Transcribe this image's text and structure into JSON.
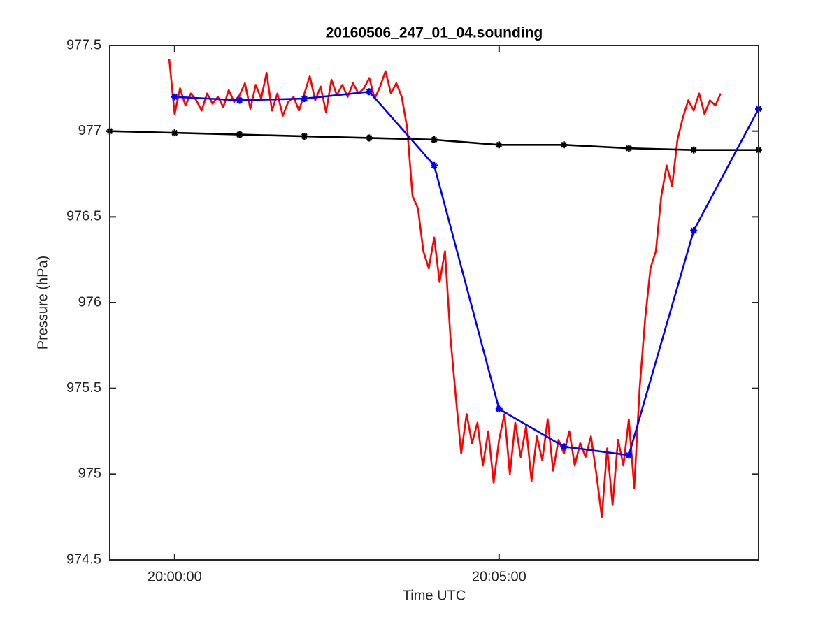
{
  "chart_data": {
    "type": "line",
    "title": "20160506_247_01_04.sounding",
    "x_label": "Time UTC",
    "y_label": "Pressure (hPa)",
    "xlim": [
      "19:59:00",
      "20:09:00"
    ],
    "xticks": [
      "20:00:00",
      "20:05:00"
    ],
    "ylim": [
      974.5,
      977.5
    ],
    "yticks": [
      974.5,
      975,
      975.5,
      976,
      976.5,
      977,
      977.5
    ],
    "series": [
      {
        "color": "#ff0000",
        "marker": "none",
        "x": [
          "19:59:55",
          "20:00:00",
          "20:00:05",
          "20:00:10",
          "20:00:15",
          "20:00:20",
          "20:00:25",
          "20:00:30",
          "20:00:35",
          "20:00:40",
          "20:00:45",
          "20:00:50",
          "20:00:55",
          "20:01:00",
          "20:01:05",
          "20:01:10",
          "20:01:15",
          "20:01:20",
          "20:01:25",
          "20:01:30",
          "20:01:35",
          "20:01:40",
          "20:01:45",
          "20:01:50",
          "20:01:55",
          "20:02:00",
          "20:02:05",
          "20:02:10",
          "20:02:15",
          "20:02:20",
          "20:02:25",
          "20:02:30",
          "20:02:35",
          "20:02:40",
          "20:02:45",
          "20:02:50",
          "20:02:55",
          "20:03:00",
          "20:03:05",
          "20:03:10",
          "20:03:15",
          "20:03:20",
          "20:03:25",
          "20:03:30",
          "20:03:35",
          "20:03:40",
          "20:03:45",
          "20:03:50",
          "20:03:55",
          "20:04:00",
          "20:04:05",
          "20:04:10",
          "20:04:15",
          "20:04:20",
          "20:04:25",
          "20:04:30",
          "20:04:35",
          "20:04:40",
          "20:04:45",
          "20:04:50",
          "20:04:55",
          "20:05:00",
          "20:05:05",
          "20:05:10",
          "20:05:15",
          "20:05:20",
          "20:05:25",
          "20:05:30",
          "20:05:35",
          "20:05:40",
          "20:05:45",
          "20:05:50",
          "20:05:55",
          "20:06:00",
          "20:06:05",
          "20:06:10",
          "20:06:15",
          "20:06:20",
          "20:06:25",
          "20:06:30",
          "20:06:35",
          "20:06:40",
          "20:06:45",
          "20:06:50",
          "20:06:55",
          "20:07:00",
          "20:07:05",
          "20:07:10",
          "20:07:15",
          "20:07:20",
          "20:07:25",
          "20:07:30",
          "20:07:35",
          "20:07:40",
          "20:07:45",
          "20:07:50",
          "20:07:55",
          "20:08:00",
          "20:08:05",
          "20:08:10",
          "20:08:15",
          "20:08:20",
          "20:08:25"
        ],
        "values": [
          977.42,
          977.1,
          977.25,
          977.15,
          977.22,
          977.18,
          977.12,
          977.22,
          977.16,
          977.2,
          977.14,
          977.24,
          977.17,
          977.21,
          977.28,
          977.13,
          977.27,
          977.19,
          977.34,
          977.12,
          977.22,
          977.09,
          977.17,
          977.2,
          977.12,
          977.22,
          977.32,
          977.18,
          977.26,
          977.11,
          977.3,
          977.21,
          977.27,
          977.2,
          977.28,
          977.22,
          977.25,
          977.31,
          977.19,
          977.26,
          977.35,
          977.22,
          977.28,
          977.2,
          977.02,
          976.62,
          976.55,
          976.3,
          976.2,
          976.38,
          976.12,
          976.3,
          975.8,
          975.45,
          975.12,
          975.35,
          975.18,
          975.3,
          975.05,
          975.25,
          974.95,
          975.2,
          975.35,
          975.0,
          975.3,
          975.1,
          975.28,
          974.96,
          975.22,
          975.08,
          975.32,
          975.02,
          975.2,
          975.12,
          975.25,
          975.05,
          975.18,
          975.1,
          975.22,
          975.0,
          974.75,
          975.15,
          974.82,
          975.2,
          975.05,
          975.32,
          974.92,
          975.5,
          975.9,
          976.2,
          976.3,
          976.62,
          976.8,
          976.68,
          976.95,
          977.08,
          977.18,
          977.12,
          977.22,
          977.1,
          977.18,
          977.15,
          977.22
        ]
      },
      {
        "color": "#000000",
        "marker": "asterisk",
        "x": [
          "19:59:00",
          "20:00:00",
          "20:01:00",
          "20:02:00",
          "20:03:00",
          "20:04:00",
          "20:05:00",
          "20:06:00",
          "20:07:00",
          "20:08:00",
          "20:09:00"
        ],
        "values": [
          977.0,
          976.99,
          976.98,
          976.97,
          976.96,
          976.95,
          976.92,
          976.92,
          976.9,
          976.89,
          976.89
        ]
      },
      {
        "color": "#0000ff",
        "marker": "asterisk",
        "x": [
          "20:00:00",
          "20:01:00",
          "20:02:00",
          "20:03:00",
          "20:04:00",
          "20:05:00",
          "20:06:00",
          "20:07:00",
          "20:08:00",
          "20:09:00"
        ],
        "values": [
          977.2,
          977.18,
          977.19,
          977.23,
          976.8,
          975.38,
          975.16,
          975.11,
          976.42,
          977.13
        ]
      }
    ]
  }
}
